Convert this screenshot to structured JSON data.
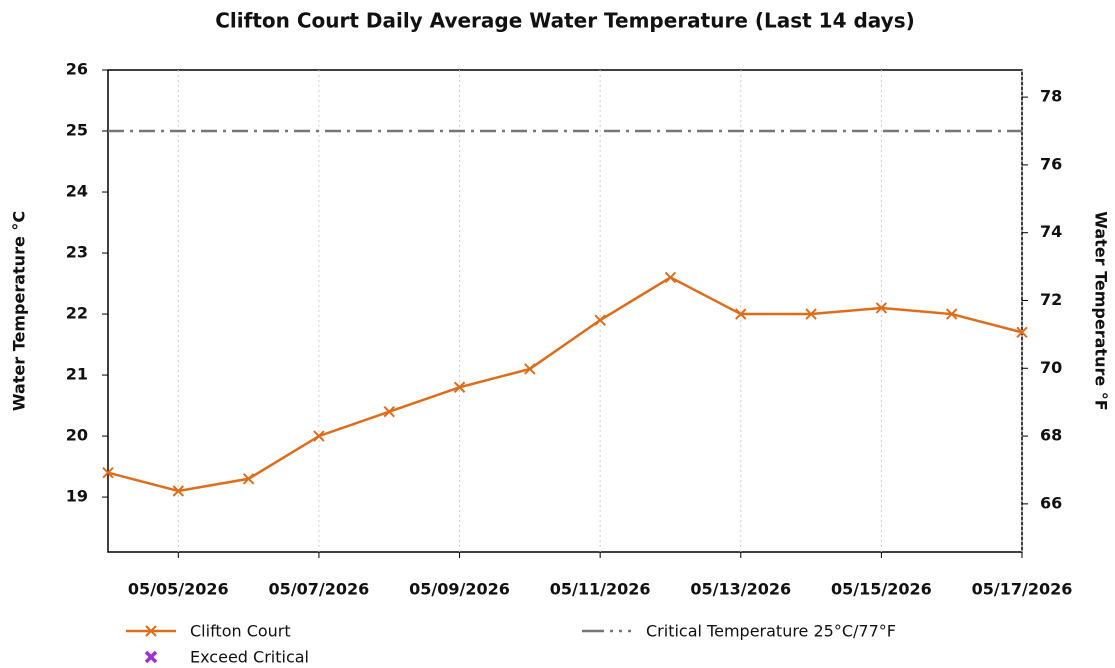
{
  "chart_data": {
    "type": "line",
    "title": "Clifton Court Daily Average Water Temperature (Last 14 days)",
    "y_label": "Water Temperature °C",
    "y2_label": "Water Temperature °F",
    "x": [
      "05/04/2026",
      "05/05/2026",
      "05/06/2026",
      "05/07/2026",
      "05/08/2026",
      "05/09/2026",
      "05/10/2026",
      "05/11/2026",
      "05/12/2026",
      "05/13/2026",
      "05/14/2026",
      "05/15/2026",
      "05/16/2026",
      "05/17/2026"
    ],
    "xlim": [
      "05/04/2026",
      "05/17/2026"
    ],
    "xticks": [
      "05/05/2026",
      "05/07/2026",
      "05/09/2026",
      "05/11/2026",
      "05/13/2026",
      "05/15/2026",
      "05/17/2026"
    ],
    "ylim": [
      18.1,
      26
    ],
    "yticks": [
      19,
      20,
      21,
      22,
      23,
      24,
      25,
      26
    ],
    "y2lim": [
      64.58,
      78.8
    ],
    "y2ticks": [
      66,
      68,
      70,
      72,
      74,
      76,
      78
    ],
    "grid": "x",
    "series": [
      {
        "name": "Clifton Court",
        "color": "#e06c1a",
        "marker": "x",
        "values": [
          19.4,
          19.1,
          19.3,
          20.0,
          20.4,
          20.8,
          21.1,
          21.9,
          22.6,
          22.0,
          22.0,
          22.1,
          22.0,
          21.7
        ]
      },
      {
        "name": "Exceed Critical",
        "color": "#9b30d9",
        "marker": "x",
        "values": [
          null,
          null,
          null,
          null,
          null,
          null,
          null,
          null,
          null,
          null,
          null,
          null,
          null,
          null
        ]
      }
    ],
    "reference_lines": [
      {
        "name": "Critical Temperature 25°C/77°F",
        "value": 25,
        "color": "#777777"
      }
    ]
  }
}
